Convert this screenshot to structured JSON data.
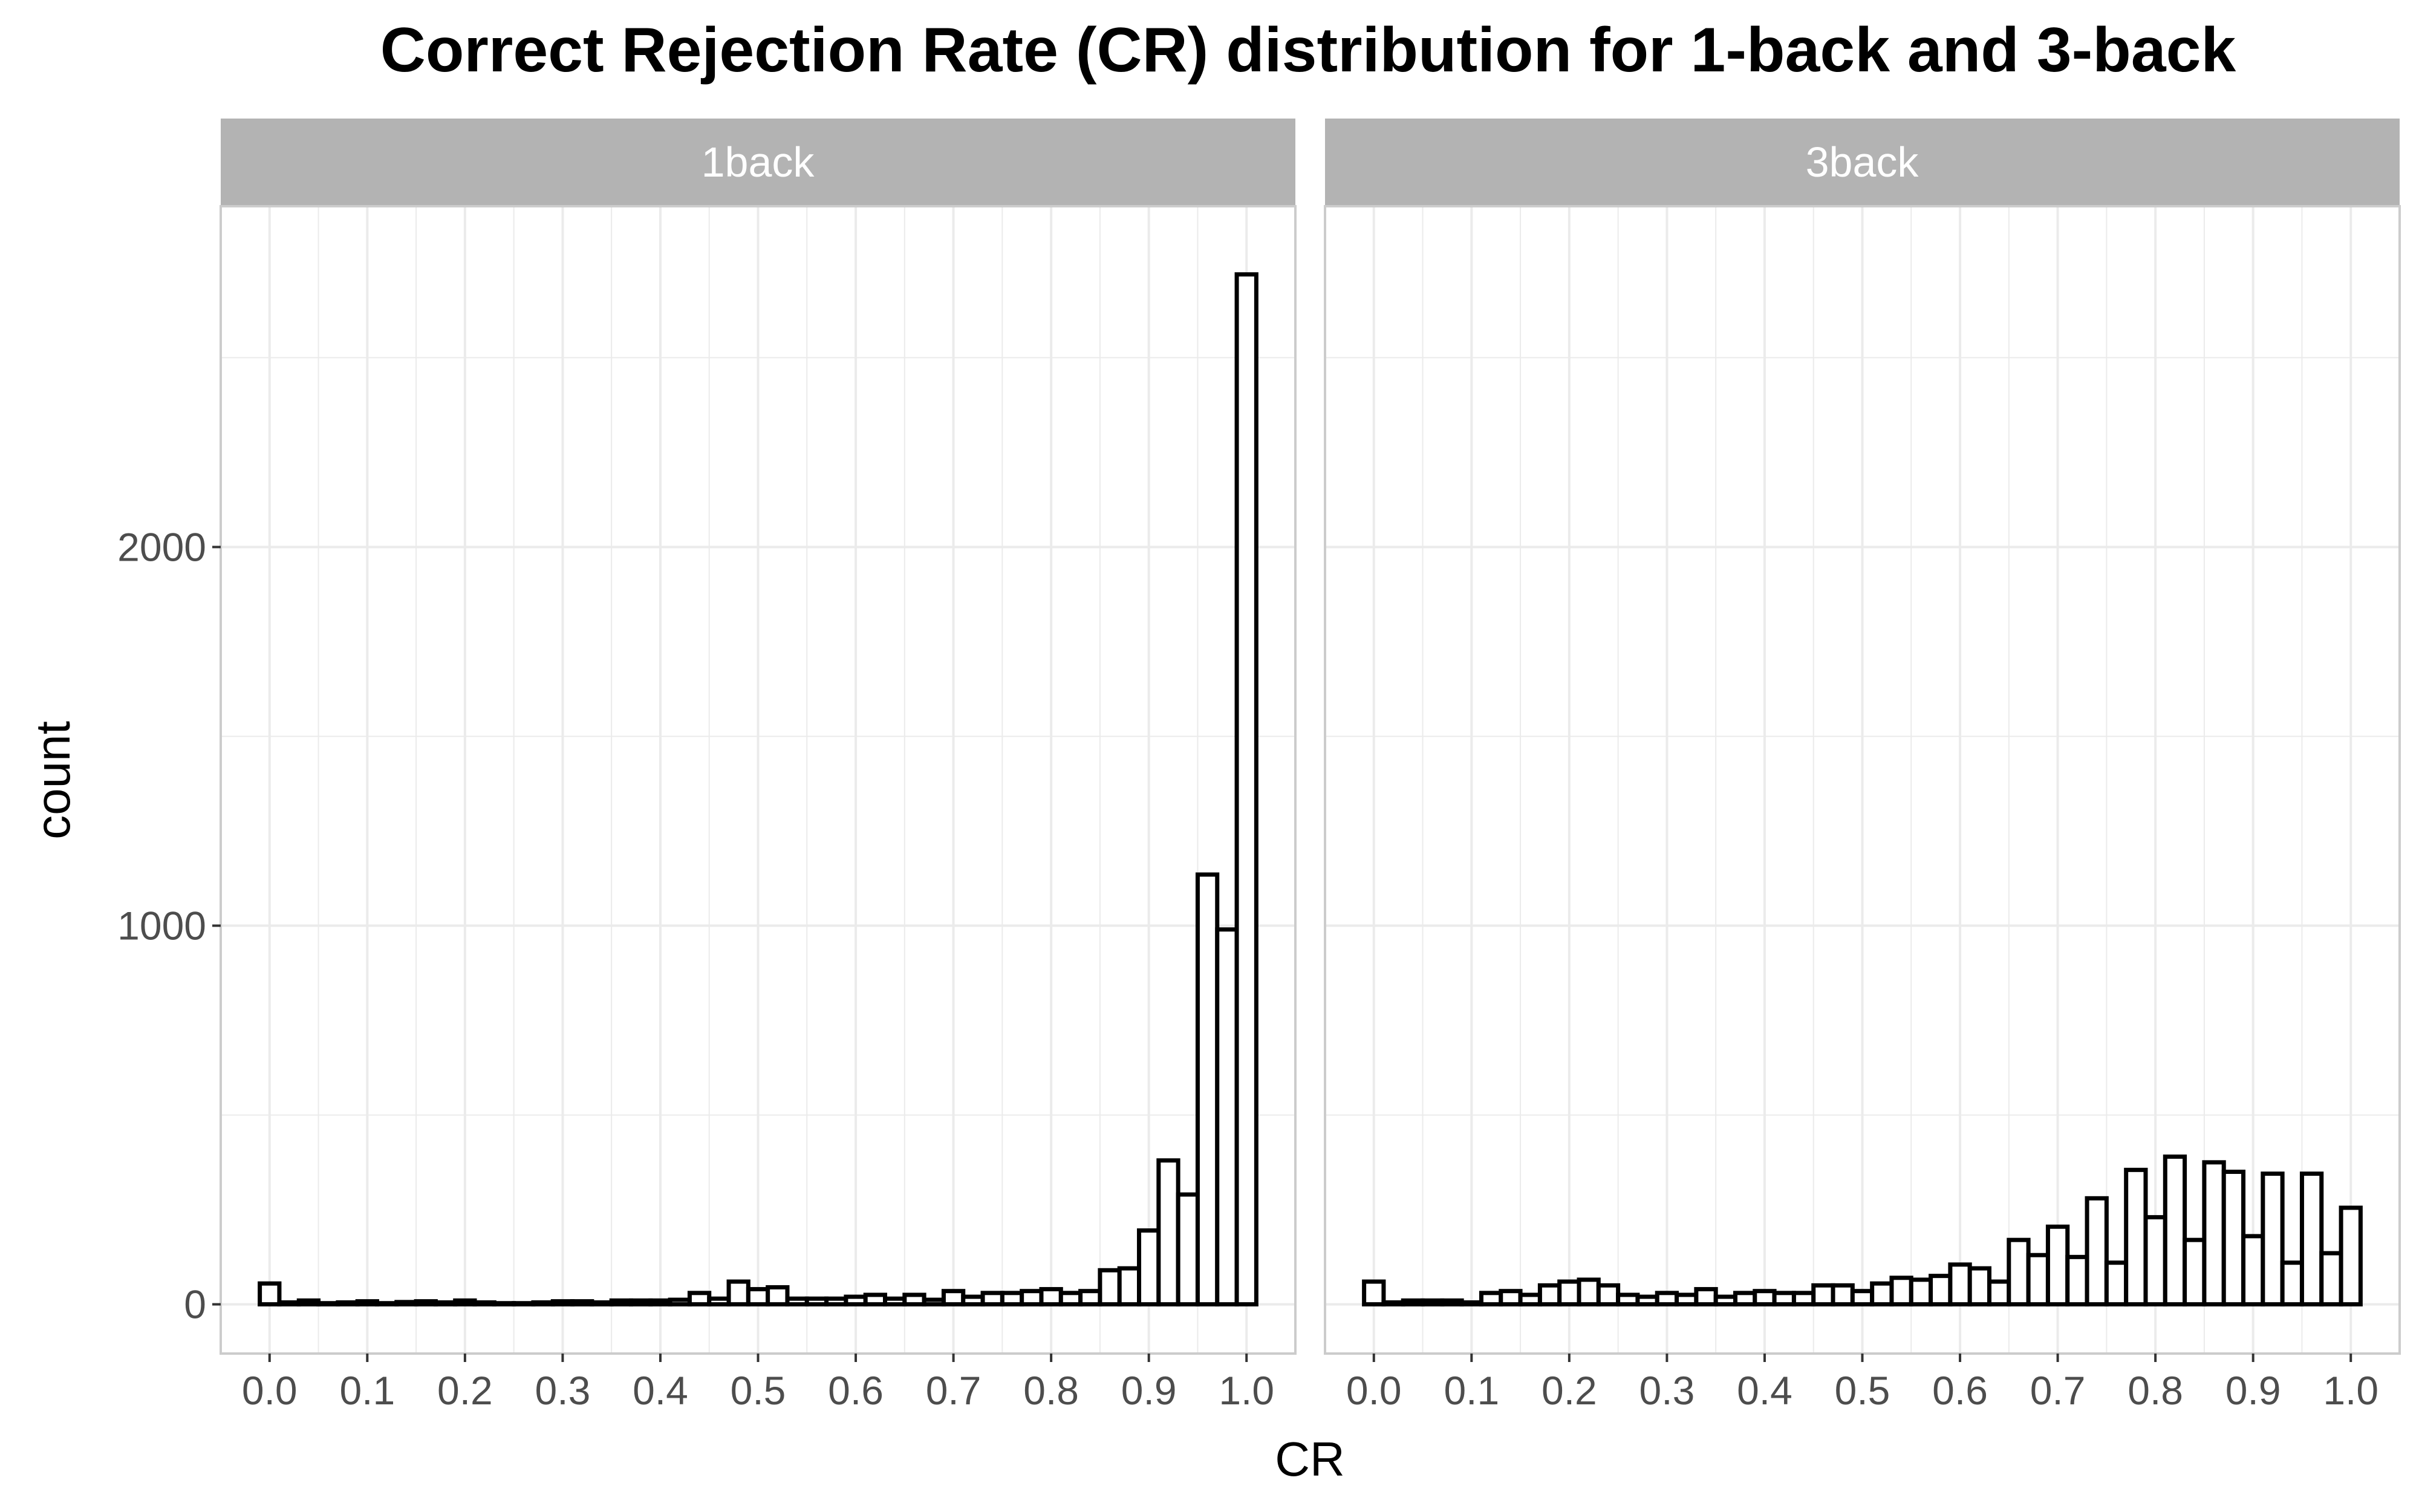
{
  "chart_data": {
    "type": "bar",
    "chart_kind": "faceted histogram",
    "title": "Correct Rejection Rate (CR) distribution for 1-back and 3-back",
    "xlabel": "CR",
    "ylabel": "count",
    "xlim": [
      -0.05,
      1.05
    ],
    "ylim": [
      -130,
      2900
    ],
    "x_ticks": [
      "0.0",
      "0.1",
      "0.2",
      "0.3",
      "0.4",
      "0.5",
      "0.6",
      "0.7",
      "0.8",
      "0.9",
      "1.0"
    ],
    "y_ticks": [
      "0",
      "1000",
      "2000"
    ],
    "y_tick_values": [
      0,
      1000,
      2000
    ],
    "grid": true,
    "bin_centers": [
      0.0,
      0.02,
      0.04,
      0.06,
      0.08,
      0.1,
      0.12,
      0.14,
      0.16,
      0.18,
      0.2,
      0.22,
      0.24,
      0.26,
      0.28,
      0.3,
      0.32,
      0.34,
      0.36,
      0.38,
      0.4,
      0.42,
      0.44,
      0.46,
      0.48,
      0.5,
      0.52,
      0.54,
      0.56,
      0.58,
      0.6,
      0.62,
      0.64,
      0.66,
      0.68,
      0.7,
      0.72,
      0.74,
      0.76,
      0.78,
      0.8,
      0.82,
      0.84,
      0.86,
      0.88,
      0.9,
      0.92,
      0.94,
      0.96,
      0.98,
      1.0
    ],
    "bin_width": 0.02,
    "panels": [
      {
        "strip_label": "1back",
        "values": [
          55,
          5,
          10,
          3,
          5,
          8,
          3,
          6,
          8,
          5,
          10,
          5,
          3,
          3,
          5,
          8,
          8,
          5,
          10,
          10,
          10,
          12,
          30,
          15,
          60,
          40,
          45,
          15,
          15,
          15,
          20,
          25,
          15,
          25,
          12,
          35,
          20,
          30,
          30,
          35,
          40,
          30,
          35,
          90,
          95,
          195,
          380,
          290,
          1135,
          990,
          2720
        ]
      },
      {
        "strip_label": "3back",
        "values": [
          60,
          5,
          10,
          10,
          10,
          5,
          30,
          35,
          25,
          50,
          60,
          65,
          50,
          25,
          20,
          30,
          25,
          40,
          20,
          30,
          35,
          30,
          30,
          50,
          50,
          35,
          55,
          70,
          65,
          75,
          105,
          95,
          60,
          170,
          130,
          205,
          125,
          280,
          110,
          355,
          230,
          390,
          170,
          375,
          350,
          180,
          345,
          110,
          345,
          135,
          255
        ]
      }
    ],
    "colors": {
      "bar_fill": "#ffffff",
      "bar_outline": "#000000",
      "strip_background": "#b3b3b3",
      "grid": "#ebebeb",
      "panel_border": "#cccccc"
    }
  }
}
